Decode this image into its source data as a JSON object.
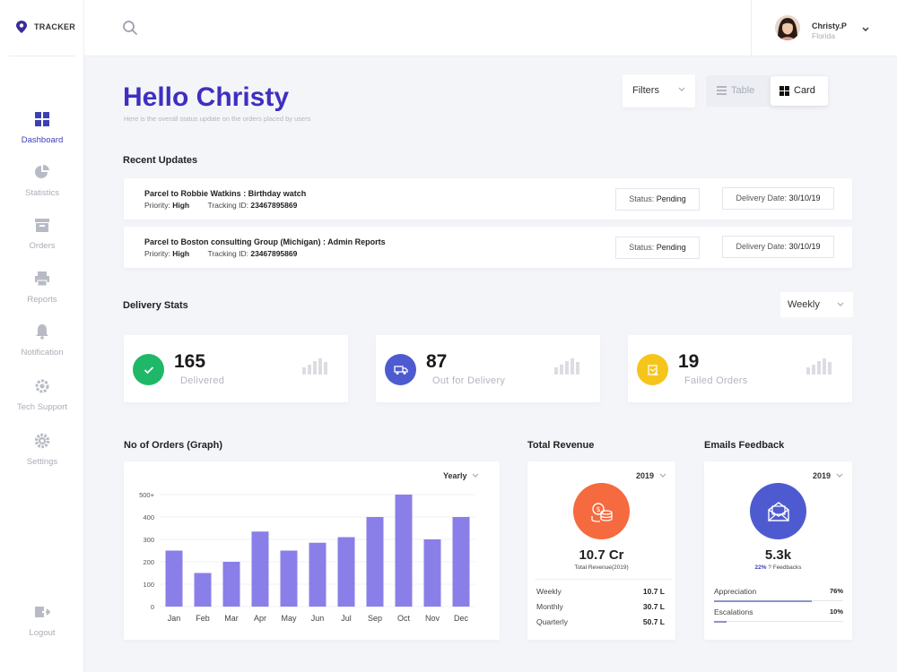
{
  "app": {
    "logo_text": "TRACKER"
  },
  "sidebar": {
    "items": [
      {
        "label": "Dashboard",
        "icon": "dashboard-grid-icon"
      },
      {
        "label": "Statistics",
        "icon": "pie-chart-icon"
      },
      {
        "label": "Orders",
        "icon": "box-icon"
      },
      {
        "label": "Reports",
        "icon": "printer-icon"
      },
      {
        "label": "Notification",
        "icon": "bell-icon"
      },
      {
        "label": "Tech Support",
        "icon": "support-gear-icon"
      },
      {
        "label": "Settings",
        "icon": "gear-icon"
      }
    ],
    "logout_label": "Logout"
  },
  "user": {
    "name": "Christy.P",
    "location": "Florida"
  },
  "greeting": {
    "title": "Hello Christy",
    "subtitle": "Here is the overall status update on the orders placed by users"
  },
  "controls": {
    "filters_label": "Filters",
    "view_table_label": "Table",
    "view_card_label": "Card",
    "view_selected": "Card"
  },
  "recent_updates": {
    "title": "Recent Updates",
    "items": [
      {
        "title": "Parcel to Robbie Watkins : Birthday watch",
        "priority_label": "Priority:",
        "priority": "High",
        "tracking_label": "Tracking ID:",
        "tracking_id": "23467895869",
        "status_label": "Status:",
        "status": "Pending",
        "date_label": "Delivery Date:",
        "date": "30/10/19"
      },
      {
        "title": "Parcel to Boston consulting Group (Michigan) : Admin Reports",
        "priority_label": "Priority:",
        "priority": "High",
        "tracking_label": "Tracking ID:",
        "tracking_id": "23467895869",
        "status_label": "Status:",
        "status": "Pending",
        "date_label": "Delivery Date:",
        "date": "30/10/19"
      }
    ]
  },
  "delivery_stats": {
    "title": "Delivery Stats",
    "period": "Weekly",
    "cards": [
      {
        "value": "165",
        "label": "Delivered",
        "color": "#1fb868",
        "icon": "check-icon"
      },
      {
        "value": "87",
        "label": "Out for Delivery",
        "color": "#4e5bd0",
        "icon": "truck-icon"
      },
      {
        "value": "19",
        "label": "Failed Orders",
        "color": "#f6c51c",
        "icon": "failed-box-icon"
      }
    ]
  },
  "orders_graph": {
    "title": "No of Orders (Graph)",
    "period": "Yearly"
  },
  "chart_data": {
    "type": "bar",
    "title": "No of Orders (Graph)",
    "categories": [
      "Jan",
      "Feb",
      "Mar",
      "Apr",
      "May",
      "Jun",
      "Jul",
      "Sep",
      "Oct",
      "Nov",
      "Dec"
    ],
    "values": [
      250,
      150,
      200,
      335,
      250,
      285,
      310,
      400,
      500,
      300,
      400
    ],
    "ytick_labels": [
      "0",
      "100",
      "200",
      "300",
      "400",
      "500+"
    ],
    "ylim": [
      0,
      500
    ],
    "grid": true,
    "bar_color": "#8a7fe8"
  },
  "total_revenue": {
    "title": "Total Revenue",
    "year": "2019",
    "value": "10.7 Cr",
    "subtitle": "Total Revenue(2019)",
    "color": "#f56a3e",
    "icon": "coins-icon",
    "rows": [
      {
        "label": "Weekly",
        "value": "10.7 L"
      },
      {
        "label": "Monthly",
        "value": "30.7 L"
      },
      {
        "label": "Quarterly",
        "value": "50.7 L"
      }
    ]
  },
  "emails_feedback": {
    "title": "Emails Feedback",
    "year": "2019",
    "value": "5.3k",
    "pct": "22%",
    "subtitle": "? Feedbacks",
    "color": "#4e5bd0",
    "icon": "mail-icon",
    "rows": [
      {
        "label": "Appreciation",
        "value": "76%",
        "fill": 0.76
      },
      {
        "label": "Escalations",
        "value": "10%",
        "fill": 0.1
      }
    ]
  }
}
